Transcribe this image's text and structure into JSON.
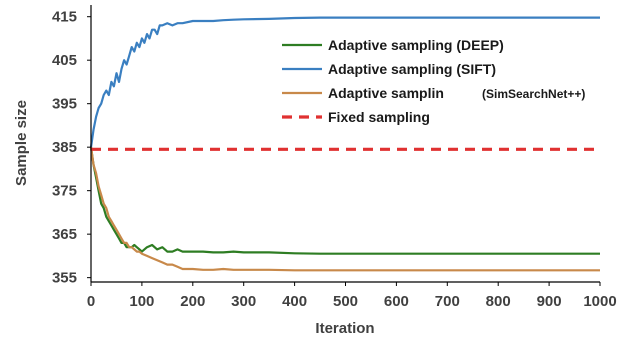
{
  "chart_data": {
    "type": "line",
    "xlabel": "Iteration",
    "ylabel": "Sample size",
    "xlim": [
      0,
      1000
    ],
    "ylim": [
      354,
      417
    ],
    "xticks": [
      "0",
      "100",
      "200",
      "300",
      "400",
      "500",
      "600",
      "700",
      "800",
      "900",
      "1000"
    ],
    "yticks": [
      "355",
      "365",
      "375",
      "385",
      "395",
      "405",
      "415"
    ],
    "grid": false,
    "legend_position": "top-right",
    "series": [
      {
        "name": "Adaptive sampling (DEEP)",
        "color": "#2e7d23",
        "dash": "solid",
        "x": [
          0,
          5,
          10,
          15,
          20,
          25,
          30,
          35,
          40,
          45,
          50,
          55,
          60,
          65,
          70,
          75,
          80,
          85,
          90,
          95,
          100,
          110,
          120,
          130,
          140,
          150,
          160,
          170,
          180,
          200,
          220,
          240,
          260,
          280,
          300,
          350,
          400,
          450,
          500,
          600,
          700,
          800,
          900,
          1000
        ],
        "y": [
          385,
          381,
          378,
          375,
          372,
          371,
          369,
          368,
          367,
          366,
          365,
          364,
          363,
          363,
          362,
          362,
          362,
          362.5,
          362,
          361.5,
          361,
          362,
          362.5,
          361.5,
          362,
          361,
          361,
          361.5,
          361,
          361,
          361,
          360.8,
          360.8,
          361,
          360.8,
          360.8,
          360.6,
          360.5,
          360.5,
          360.5,
          360.5,
          360.5,
          360.5,
          360.5
        ]
      },
      {
        "name": "Adaptive sampling (SIFT)",
        "color": "#3a7fc1",
        "dash": "solid",
        "x": [
          0,
          5,
          10,
          15,
          20,
          25,
          30,
          35,
          40,
          45,
          50,
          55,
          60,
          65,
          70,
          75,
          80,
          85,
          90,
          95,
          100,
          105,
          110,
          115,
          120,
          125,
          130,
          135,
          140,
          150,
          160,
          170,
          180,
          200,
          220,
          240,
          260,
          280,
          300,
          350,
          400,
          450,
          500,
          600,
          700,
          800,
          900,
          1000
        ],
        "y": [
          385,
          389,
          392,
          394,
          395,
          397,
          398,
          397,
          400,
          399,
          402,
          400,
          403,
          405,
          404,
          406,
          408,
          407,
          409,
          408,
          410,
          409,
          411,
          410,
          412,
          412,
          411,
          413,
          413,
          413.5,
          413,
          413.5,
          413.5,
          414,
          414,
          414,
          414.2,
          414.3,
          414.4,
          414.5,
          414.7,
          414.8,
          414.8,
          414.8,
          414.8,
          414.8,
          414.8,
          414.8
        ]
      },
      {
        "name": "Adaptive samplin",
        "label_extra": "(SimSearchNet++)",
        "color": "#c8894a",
        "dash": "solid",
        "x": [
          0,
          5,
          10,
          15,
          20,
          25,
          30,
          35,
          40,
          45,
          50,
          55,
          60,
          65,
          70,
          75,
          80,
          85,
          90,
          95,
          100,
          110,
          120,
          130,
          140,
          150,
          160,
          170,
          180,
          200,
          220,
          240,
          260,
          280,
          300,
          350,
          400,
          450,
          500,
          600,
          700,
          800,
          900,
          1000
        ],
        "y": [
          385,
          381,
          379,
          376,
          374,
          372,
          371,
          369,
          368,
          367,
          366,
          365,
          364,
          363,
          363,
          362,
          362,
          361.5,
          361,
          361,
          360.5,
          360,
          359.5,
          359,
          358.5,
          358,
          358,
          357.5,
          357,
          357,
          356.8,
          356.8,
          357,
          356.8,
          356.8,
          356.8,
          356.7,
          356.7,
          356.7,
          356.7,
          356.7,
          356.7,
          356.7,
          356.7
        ]
      },
      {
        "name": "Fixed sampling",
        "color": "#e03131",
        "dash": "dashed",
        "x": [
          0,
          1000
        ],
        "y": [
          384.5,
          384.5
        ]
      }
    ]
  }
}
